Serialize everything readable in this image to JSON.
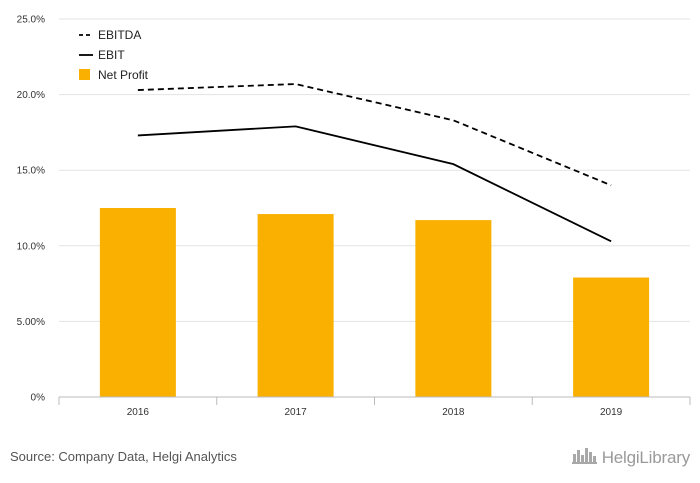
{
  "chart_data": {
    "type": "bar",
    "categories": [
      "2016",
      "2017",
      "2018",
      "2019"
    ],
    "series": [
      {
        "name": "EBITDA",
        "type": "line",
        "style": "dashed",
        "color": "#000000",
        "values": [
          20.3,
          20.7,
          18.3,
          14.0
        ]
      },
      {
        "name": "EBIT",
        "type": "line",
        "style": "solid",
        "color": "#000000",
        "values": [
          17.3,
          17.9,
          15.4,
          10.3
        ]
      },
      {
        "name": "Net Profit",
        "type": "bar",
        "color": "#F9B000",
        "values": [
          12.5,
          12.1,
          11.7,
          7.9
        ]
      }
    ],
    "y_ticks": [
      "0%",
      "5.00%",
      "10.0%",
      "15.0%",
      "20.0%",
      "25.0%"
    ],
    "ylim": [
      0,
      25
    ],
    "grid": true,
    "legend_position": "top-left",
    "title": "",
    "xlabel": "",
    "ylabel": ""
  },
  "footer": {
    "source": "Source: Company Data, Helgi Analytics",
    "logo_text": "HelgiLibrary",
    "logo_icon": "city-skyline-icon"
  }
}
